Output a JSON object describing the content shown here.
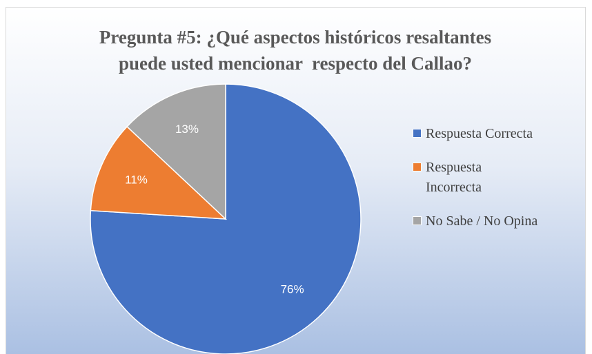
{
  "chart_data": {
    "type": "pie",
    "title": [
      "Pregunta #5: ¿Qué aspectos históricos resaltantes",
      "puede usted mencionar  respecto del Callao?"
    ],
    "categories": [
      "Respuesta Correcta",
      "Respuesta Incorrecta",
      "No Sabe / No Opina"
    ],
    "values": [
      76,
      11,
      13
    ],
    "value_labels": [
      "76%",
      "11%",
      "13%"
    ],
    "colors": [
      "#4472c4",
      "#ed7d31",
      "#a5a5a5"
    ],
    "legend": "right"
  }
}
